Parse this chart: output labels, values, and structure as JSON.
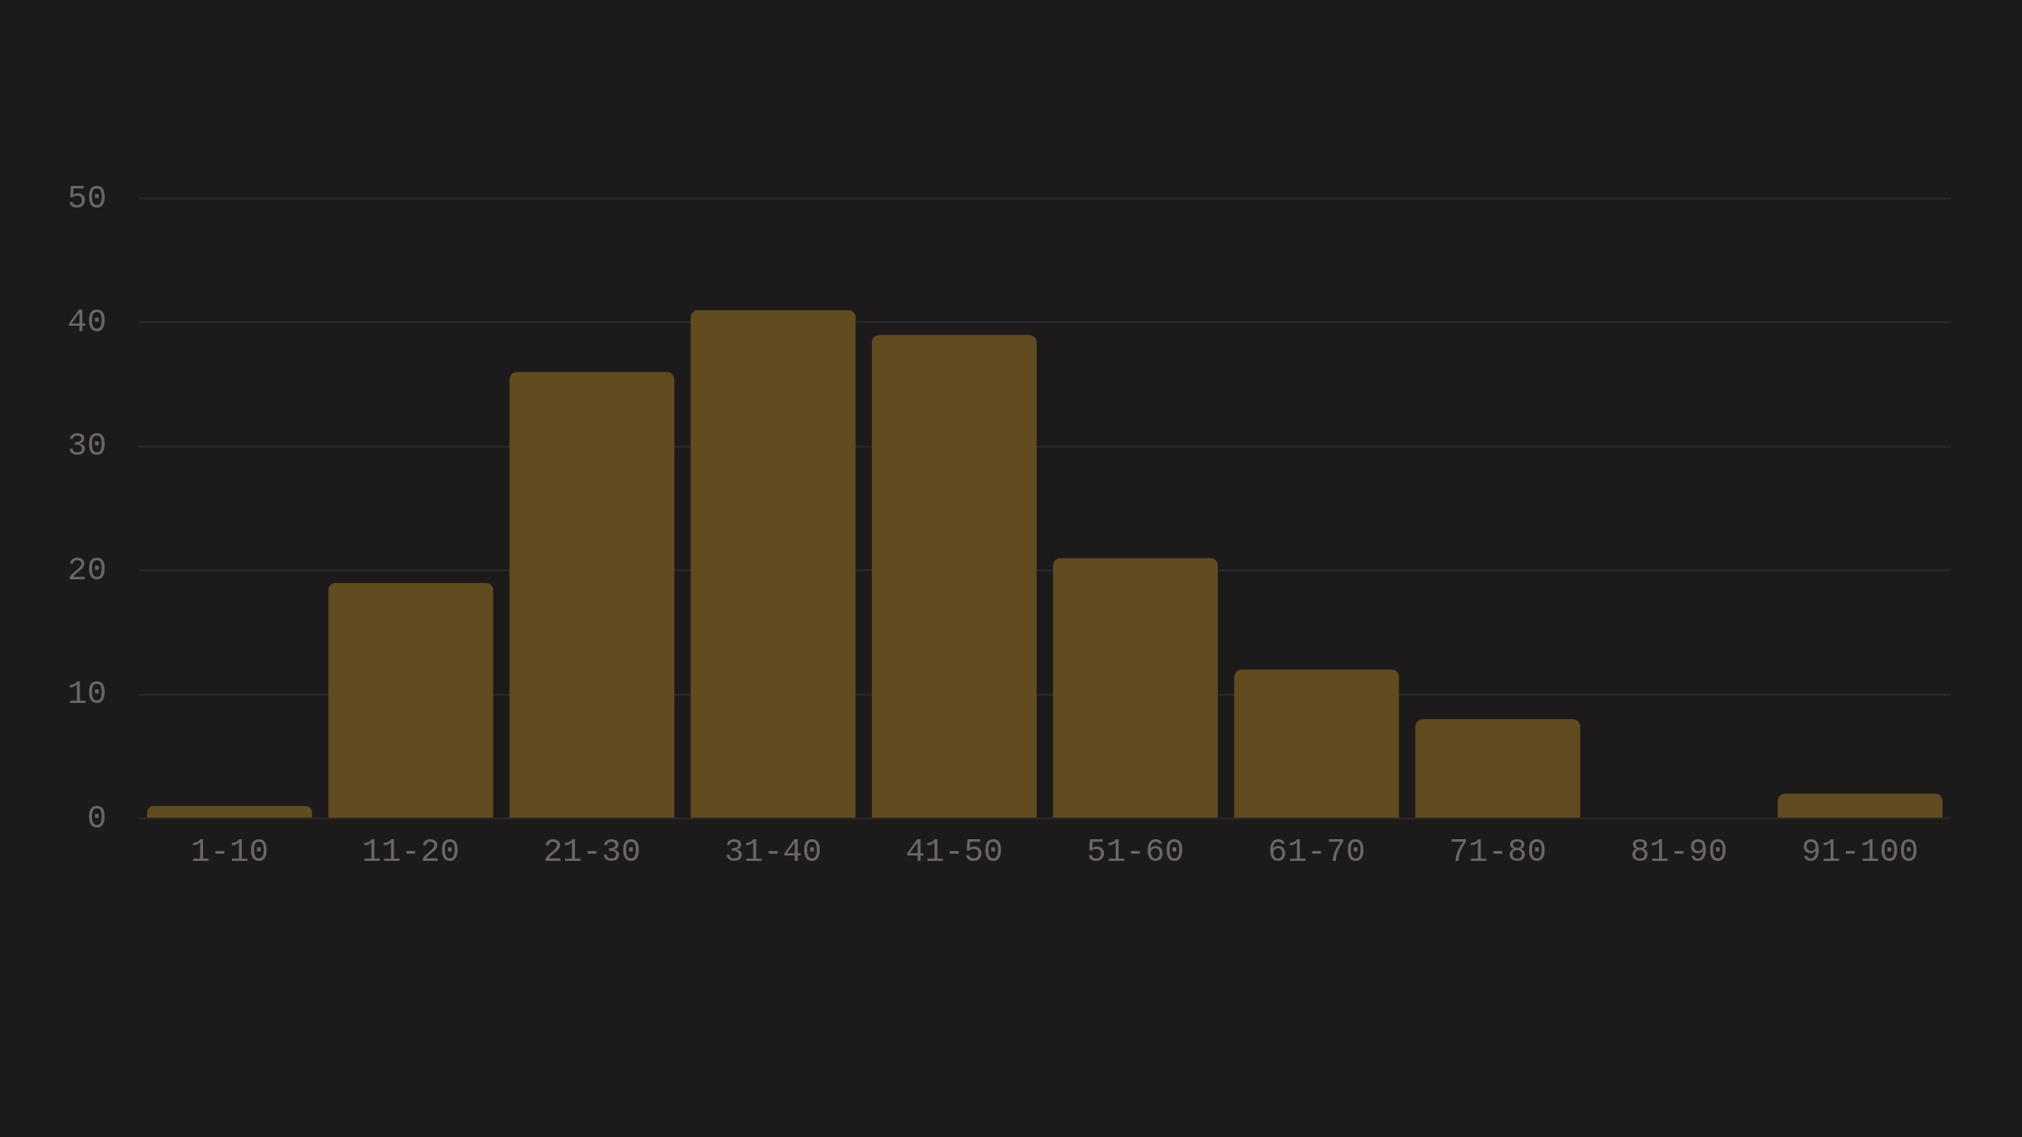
{
  "chart_data": {
    "type": "bar",
    "categories": [
      "1-10",
      "11-20",
      "21-30",
      "31-40",
      "41-50",
      "51-60",
      "61-70",
      "71-80",
      "81-90",
      "91-100"
    ],
    "values": [
      1,
      19,
      36,
      41,
      39,
      21,
      12,
      8,
      0,
      2
    ],
    "color": "#614c1f",
    "ylim": [
      0,
      50
    ],
    "yticks": [
      0,
      10,
      20,
      30,
      40,
      50
    ],
    "grid": "y"
  }
}
